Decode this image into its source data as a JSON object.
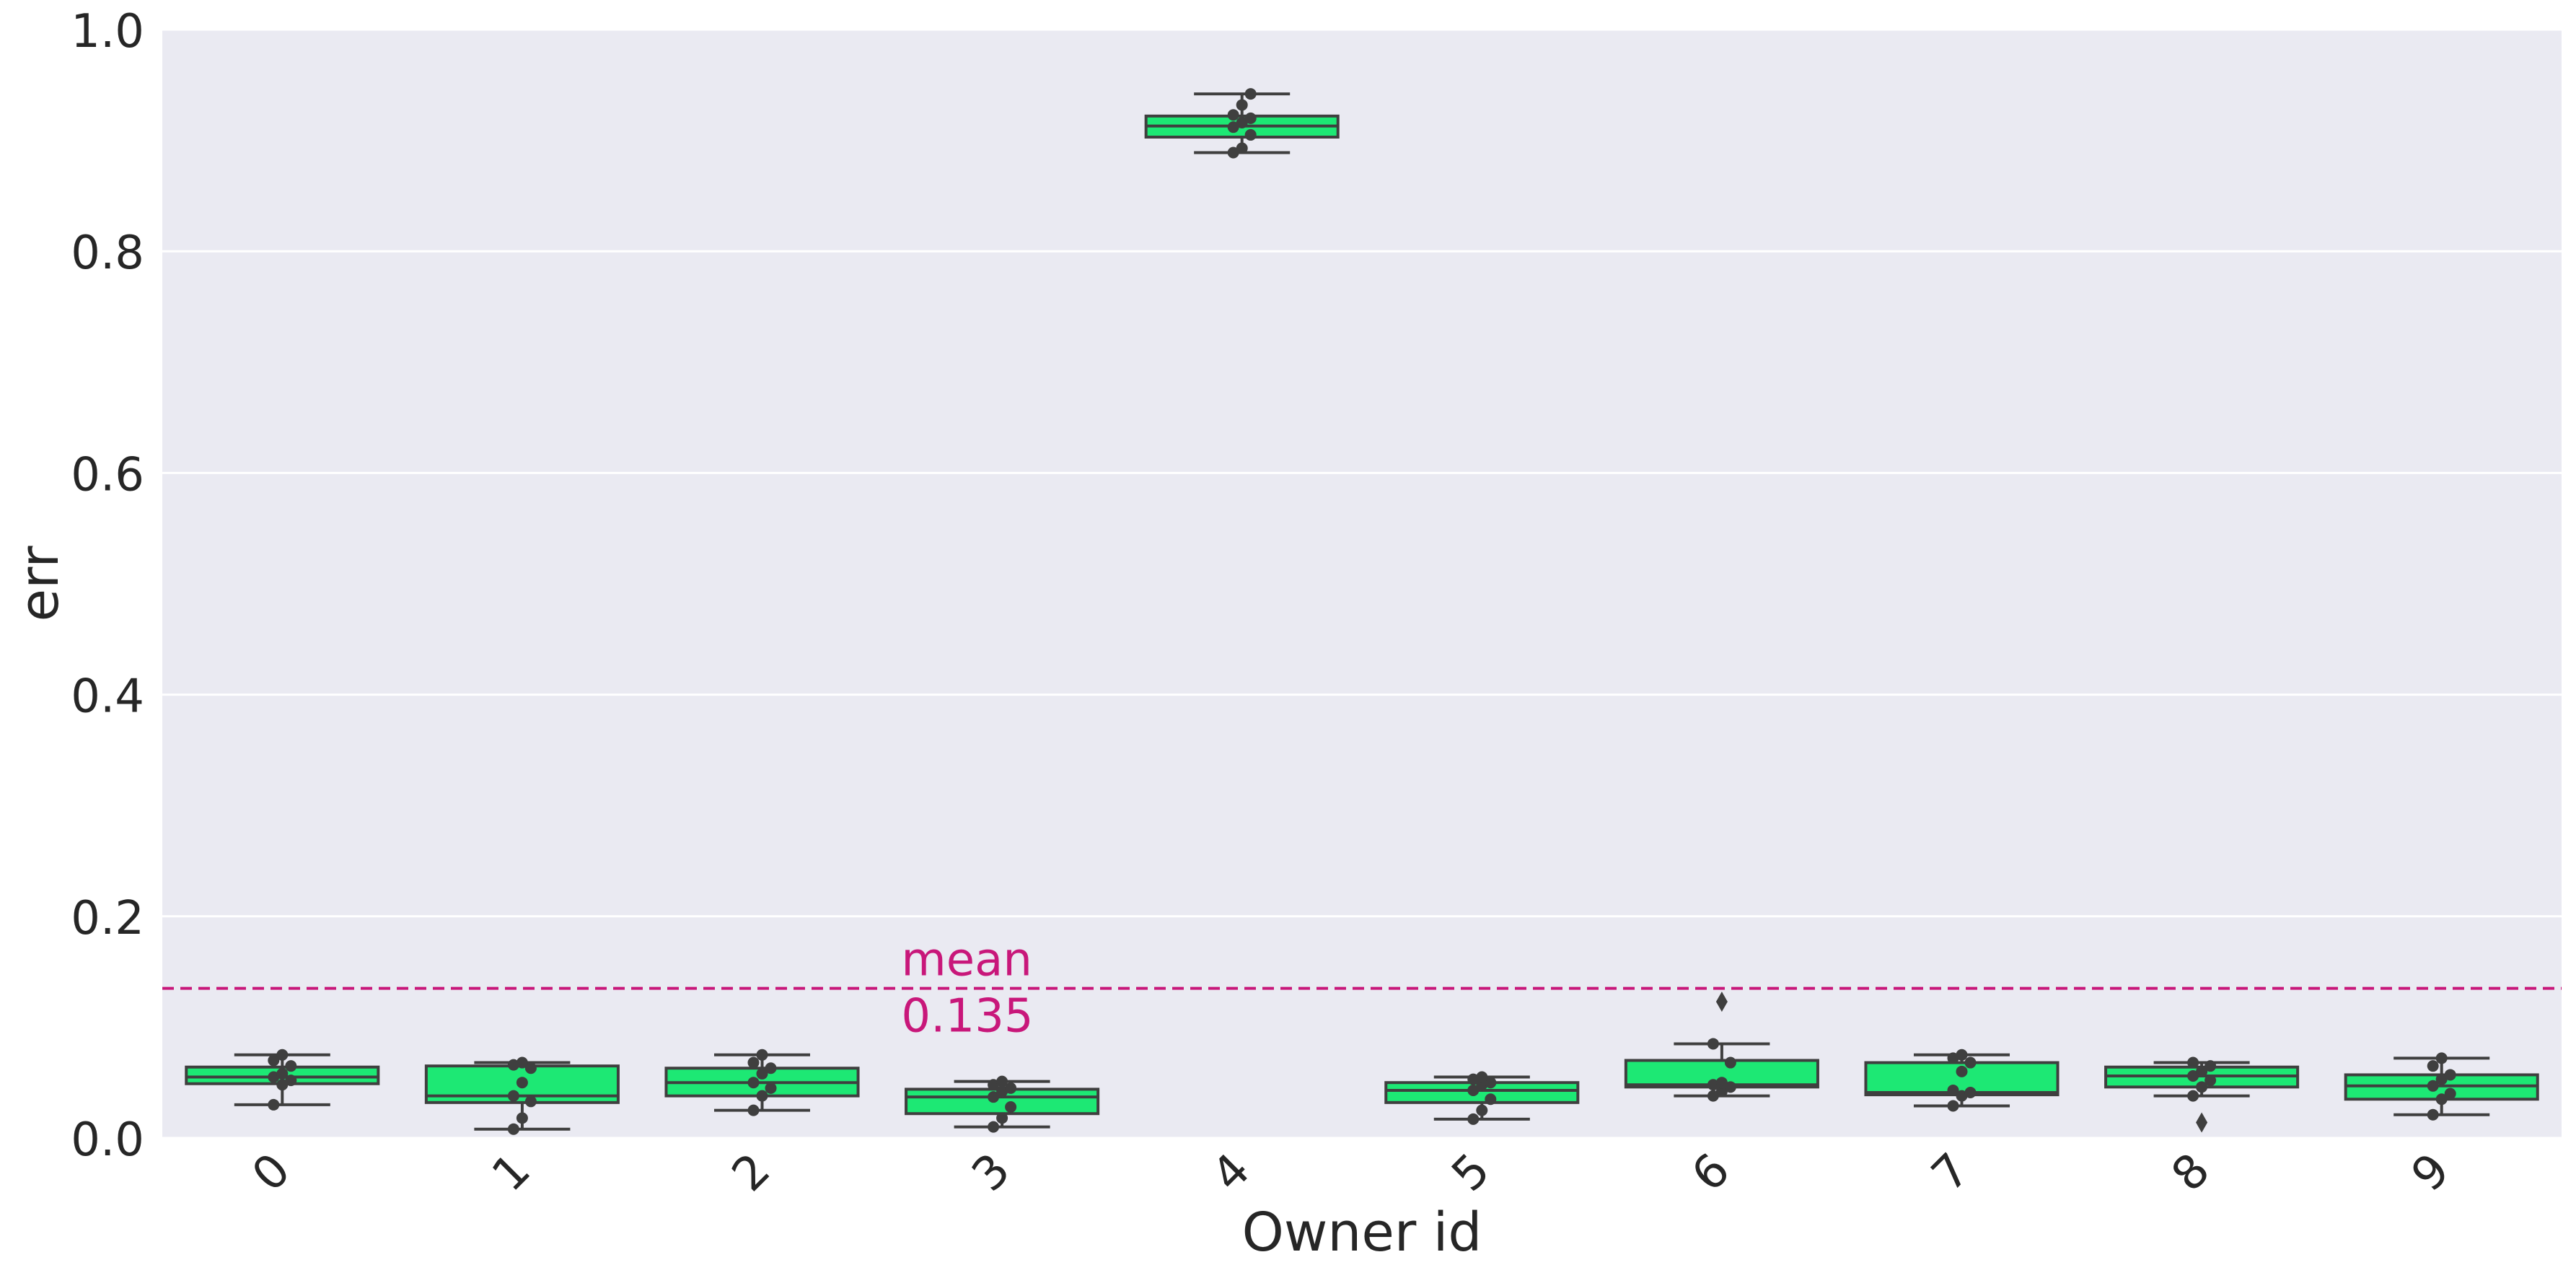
{
  "chart_data": {
    "type": "box",
    "xlabel": "Owner id",
    "ylabel": "err",
    "ylim": [
      0.0,
      1.0
    ],
    "yticks": [
      0.0,
      0.2,
      0.4,
      0.6,
      0.8,
      1.0
    ],
    "ytick_labels": [
      "0.0",
      "0.2",
      "0.4",
      "0.6",
      "0.8",
      "1.0"
    ],
    "categories": [
      "0",
      "1",
      "2",
      "3",
      "4",
      "5",
      "6",
      "7",
      "8",
      "9"
    ],
    "grid": true,
    "box_color": "#1de874",
    "edge_color": "#3f3f3f",
    "point_color": "#3f3f3f",
    "boxes": [
      {
        "category": "0",
        "whislo": 0.03,
        "q1": 0.049,
        "med": 0.055,
        "q3": 0.064,
        "whishi": 0.075,
        "fliers": [],
        "points": [
          0.03,
          0.048,
          0.052,
          0.055,
          0.058,
          0.065,
          0.07,
          0.075
        ]
      },
      {
        "category": "1",
        "whislo": 0.008,
        "q1": 0.032,
        "med": 0.038,
        "q3": 0.065,
        "whishi": 0.068,
        "fliers": [],
        "points": [
          0.008,
          0.018,
          0.033,
          0.038,
          0.05,
          0.063,
          0.066,
          0.068
        ]
      },
      {
        "category": "2",
        "whislo": 0.025,
        "q1": 0.038,
        "med": 0.05,
        "q3": 0.063,
        "whishi": 0.075,
        "fliers": [],
        "points": [
          0.025,
          0.038,
          0.045,
          0.05,
          0.058,
          0.063,
          0.068,
          0.075
        ]
      },
      {
        "category": "3",
        "whislo": 0.01,
        "q1": 0.022,
        "med": 0.037,
        "q3": 0.044,
        "whishi": 0.051,
        "fliers": [],
        "points": [
          0.01,
          0.018,
          0.028,
          0.037,
          0.042,
          0.045,
          0.048,
          0.051
        ]
      },
      {
        "category": "4",
        "whislo": 0.889,
        "q1": 0.903,
        "med": 0.913,
        "q3": 0.922,
        "whishi": 0.942,
        "fliers": [],
        "points": [
          0.889,
          0.893,
          0.905,
          0.912,
          0.916,
          0.92,
          0.923,
          0.932,
          0.942
        ]
      },
      {
        "category": "5",
        "whislo": 0.017,
        "q1": 0.032,
        "med": 0.043,
        "q3": 0.05,
        "whishi": 0.055,
        "fliers": [],
        "points": [
          0.017,
          0.025,
          0.035,
          0.043,
          0.048,
          0.05,
          0.053,
          0.055
        ]
      },
      {
        "category": "6",
        "whislo": 0.038,
        "q1": 0.046,
        "med": 0.048,
        "q3": 0.07,
        "whishi": 0.085,
        "fliers": [
          0.123
        ],
        "points": [
          0.038,
          0.042,
          0.046,
          0.048,
          0.05,
          0.068,
          0.085
        ]
      },
      {
        "category": "7",
        "whislo": 0.029,
        "q1": 0.039,
        "med": 0.041,
        "q3": 0.068,
        "whishi": 0.075,
        "fliers": [],
        "points": [
          0.029,
          0.038,
          0.041,
          0.043,
          0.06,
          0.068,
          0.072,
          0.075
        ]
      },
      {
        "category": "8",
        "whislo": 0.038,
        "q1": 0.046,
        "med": 0.056,
        "q3": 0.064,
        "whishi": 0.068,
        "fliers": [
          0.014
        ],
        "points": [
          0.038,
          0.046,
          0.052,
          0.056,
          0.06,
          0.065,
          0.068
        ]
      },
      {
        "category": "9",
        "whislo": 0.021,
        "q1": 0.035,
        "med": 0.047,
        "q3": 0.057,
        "whishi": 0.072,
        "fliers": [],
        "points": [
          0.021,
          0.035,
          0.04,
          0.047,
          0.053,
          0.057,
          0.065,
          0.072
        ]
      }
    ],
    "mean_line": {
      "value": 0.135,
      "label": "mean",
      "value_label": "0.135",
      "color": "#c8177a",
      "style": "dashed"
    }
  }
}
